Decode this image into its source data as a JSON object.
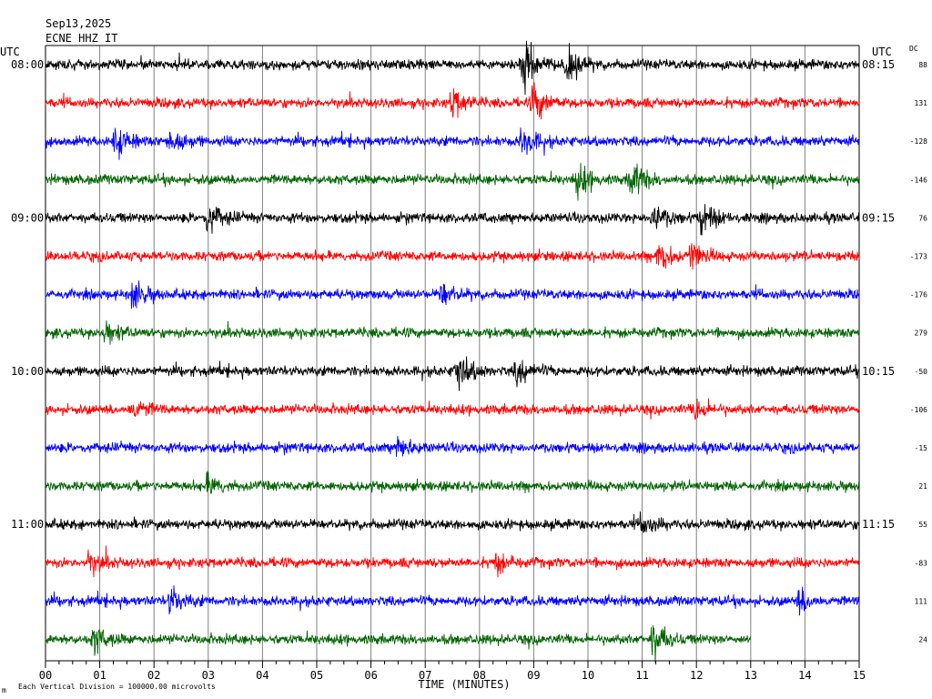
{
  "header": {
    "date": "Sep13,2025",
    "station": "ECNE HHZ IT",
    "utc_left": "UTC",
    "utc_right": "UTC",
    "dc_label": "DC"
  },
  "footer": {
    "scale_note": "Each Vertical Division = 100000.00 microvolts",
    "corner_mark": "m"
  },
  "chart_data": {
    "type": "line",
    "title": "",
    "xlabel": "TIME (MINUTES)",
    "ylabel": "",
    "xlim": [
      0,
      15
    ],
    "x_tick_labels": [
      "00",
      "01",
      "02",
      "03",
      "04",
      "05",
      "06",
      "07",
      "08",
      "09",
      "10",
      "11",
      "12",
      "13",
      "14",
      "15"
    ],
    "grid": true,
    "trace_colors": [
      "#000000",
      "#ff0000",
      "#0000ff",
      "#006400"
    ],
    "left_time_labels": [
      "08:00",
      "",
      "",
      "",
      "09:00",
      "",
      "",
      "",
      "10:00",
      "",
      "",
      "",
      "11:00",
      "",
      "",
      ""
    ],
    "right_time_labels": [
      "08:15",
      "",
      "",
      "",
      "09:15",
      "",
      "",
      "",
      "10:15",
      "",
      "",
      "",
      "11:15",
      "",
      "",
      ""
    ],
    "dc_offsets": [
      "88",
      "131",
      "-128",
      "-146",
      "76",
      "-173",
      "-176",
      "279",
      "-50",
      "-106",
      "-15",
      "21",
      "55",
      "-83",
      "111",
      "24"
    ],
    "trace_end_minutes": [
      15,
      15,
      15,
      15,
      15,
      15,
      15,
      15,
      15,
      15,
      15,
      15,
      15,
      15,
      15,
      13
    ],
    "events": [
      [
        [
          8.8,
          3.5
        ],
        [
          9.6,
          2.0
        ]
      ],
      [
        [
          7.5,
          2.0
        ],
        [
          9.0,
          2.5
        ]
      ],
      [
        [
          1.3,
          2.0
        ],
        [
          2.3,
          1.8
        ],
        [
          8.8,
          2.0
        ]
      ],
      [
        [
          9.8,
          2.0
        ],
        [
          10.8,
          2.5
        ]
      ],
      [
        [
          3.0,
          2.0
        ],
        [
          11.2,
          2.0
        ],
        [
          12.1,
          2.2
        ]
      ],
      [
        [
          11.3,
          2.0
        ],
        [
          11.9,
          1.6
        ]
      ],
      [
        [
          1.6,
          1.8
        ],
        [
          7.3,
          1.5
        ]
      ],
      [
        [
          1.1,
          1.4
        ]
      ],
      [
        [
          7.6,
          2.5
        ],
        [
          8.7,
          1.8
        ]
      ],
      [
        [
          1.6,
          1.4
        ],
        [
          12.0,
          1.4
        ]
      ],
      [
        [
          6.5,
          1.3
        ]
      ],
      [
        [
          3.0,
          1.3
        ]
      ],
      [
        [
          11.0,
          1.3
        ]
      ],
      [
        [
          0.8,
          1.4
        ],
        [
          8.3,
          1.3
        ]
      ],
      [
        [
          2.3,
          1.8
        ],
        [
          13.9,
          1.4
        ]
      ],
      [
        [
          0.9,
          1.6
        ],
        [
          11.2,
          2.5
        ]
      ]
    ]
  }
}
